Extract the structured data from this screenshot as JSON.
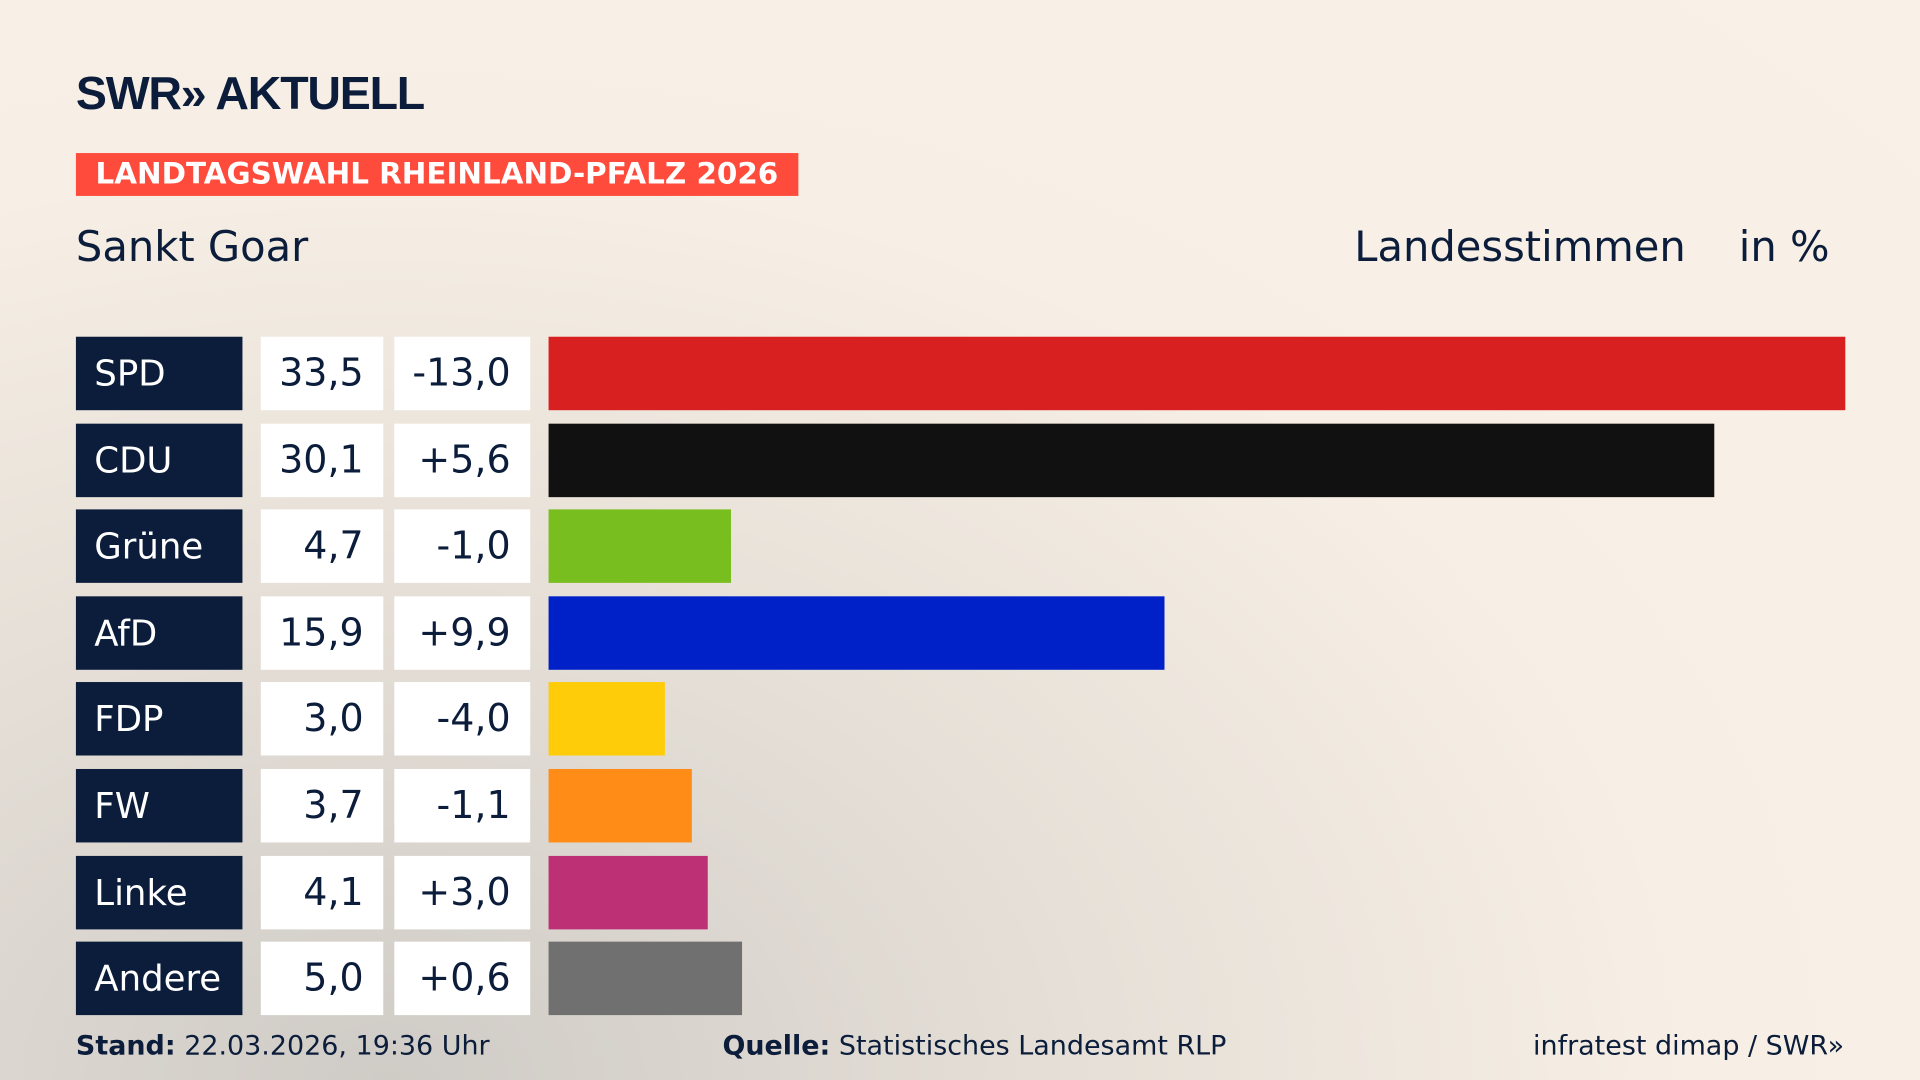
{
  "header": {
    "logo": "SWR» AKTUELL",
    "kicker": "LANDTAGSWAHL RHEINLAND-PFALZ 2026",
    "place": "Sankt Goar",
    "metric": "Landesstimmen",
    "unit": "in %"
  },
  "chart_data": {
    "type": "bar",
    "orientation": "horizontal",
    "xlim": [
      0,
      33.5
    ],
    "categories": [
      "SPD",
      "CDU",
      "Grüne",
      "AfD",
      "FDP",
      "FW",
      "Linke",
      "Andere"
    ],
    "values": [
      33.5,
      30.1,
      4.7,
      15.9,
      3.0,
      3.7,
      4.1,
      5.0
    ],
    "value_labels": [
      "33,5",
      "30,1",
      "4,7",
      "15,9",
      "3,0",
      "3,7",
      "4,1",
      "5,0"
    ],
    "changes": [
      "-13,0",
      "+5,6",
      "-1,0",
      "+9,9",
      "-4,0",
      "-1,1",
      "+3,0",
      "+0,6"
    ],
    "colors": [
      "#d82020",
      "#111111",
      "#78be1e",
      "#0020c8",
      "#ffcc0a",
      "#ff8c16",
      "#be3075",
      "#707070"
    ]
  },
  "footer": {
    "stand_label": "Stand:",
    "stand": "22.03.2026, 19:36 Uhr",
    "source_label": "Quelle:",
    "source": "Statistisches Landesamt RLP",
    "credit": "infratest dimap / SWR»"
  }
}
